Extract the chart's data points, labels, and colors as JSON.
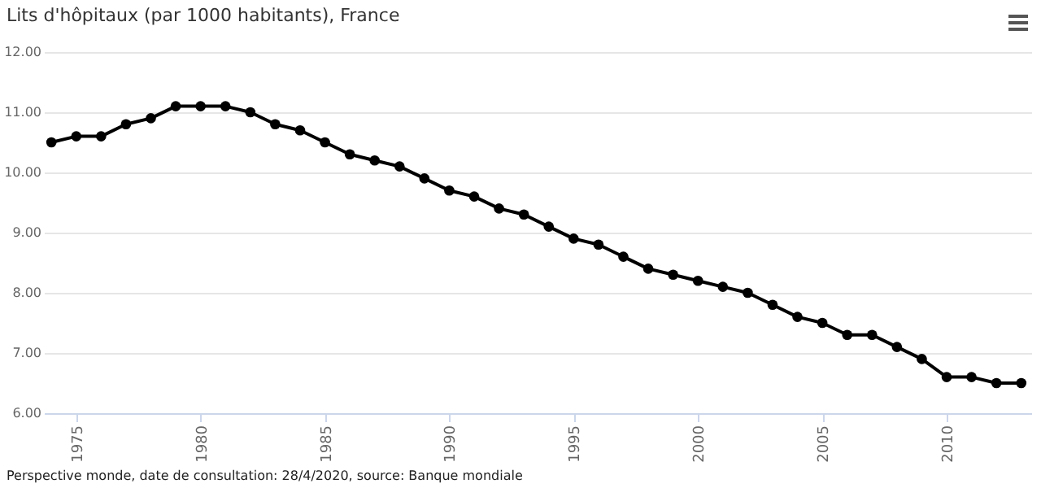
{
  "chart_data": {
    "type": "line",
    "title": "Lits d'hôpitaux (par 1000 habitants), France",
    "x": [
      1974,
      1975,
      1976,
      1977,
      1978,
      1979,
      1980,
      1981,
      1982,
      1983,
      1984,
      1985,
      1986,
      1987,
      1988,
      1989,
      1990,
      1991,
      1992,
      1993,
      1994,
      1995,
      1996,
      1997,
      1998,
      1999,
      2000,
      2001,
      2002,
      2003,
      2004,
      2005,
      2006,
      2007,
      2008,
      2009,
      2010,
      2011,
      2012,
      2013
    ],
    "series": [
      {
        "color": "#000000",
        "values": [
          10.5,
          10.6,
          10.6,
          10.8,
          10.9,
          11.1,
          11.1,
          11.1,
          11.0,
          10.8,
          10.7,
          10.5,
          10.3,
          10.2,
          10.1,
          9.9,
          9.7,
          9.6,
          9.4,
          9.3,
          9.1,
          8.9,
          8.8,
          8.6,
          8.4,
          8.3,
          8.2,
          8.1,
          8.0,
          7.8,
          7.6,
          7.5,
          7.3,
          7.3,
          7.1,
          6.9,
          6.6,
          6.6,
          6.5,
          6.5
        ]
      }
    ],
    "xlim": [
      1973.7,
      2013.4
    ],
    "xticks": [
      1975,
      1980,
      1985,
      1990,
      1995,
      2000,
      2005,
      2010
    ],
    "ylim": [
      6,
      12
    ],
    "yticks": [
      {
        "value": 6,
        "label": "6.00"
      },
      {
        "value": 7,
        "label": "7.00"
      },
      {
        "value": 8,
        "label": "8.00"
      },
      {
        "value": 9,
        "label": "9.00"
      },
      {
        "value": 10,
        "label": "10.00"
      },
      {
        "value": 11,
        "label": "11.00"
      },
      {
        "value": 12,
        "label": "12.00"
      }
    ],
    "grid": "y",
    "marker": "circle",
    "line_style": "solid",
    "annotations": [
      "Perspective monde, date de consultation: 28/4/2020, source: Banque mondiale"
    ]
  }
}
